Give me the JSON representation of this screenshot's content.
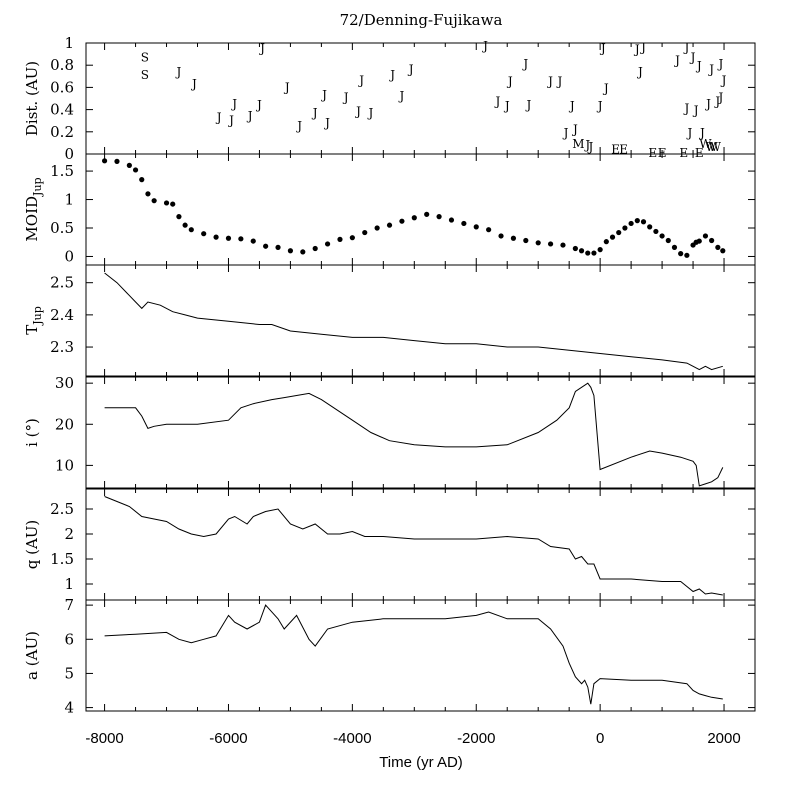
{
  "chart_data": {
    "type": "line",
    "title": "72/Denning-Fujikawa",
    "xlabel": "Time (yr AD)",
    "xlim": [
      -8300,
      2500
    ],
    "xticks": [
      -8000,
      -6000,
      -4000,
      -2000,
      0,
      2000
    ],
    "panels": [
      {
        "id": "dist",
        "type": "scatter",
        "ylabel": "Dist. (AU)",
        "ylim": [
          0,
          1
        ],
        "yticks": [
          0,
          0.2,
          0.4,
          0.6,
          0.8,
          1
        ],
        "encounters": [
          {
            "x": -7350,
            "y": 0.88,
            "label": "S"
          },
          {
            "x": -7350,
            "y": 0.72,
            "label": "S"
          },
          {
            "x": -6800,
            "y": 0.75,
            "label": "J"
          },
          {
            "x": -6550,
            "y": 0.64,
            "label": "J"
          },
          {
            "x": -6150,
            "y": 0.34,
            "label": "J"
          },
          {
            "x": -5950,
            "y": 0.31,
            "label": "J"
          },
          {
            "x": -5900,
            "y": 0.46,
            "label": "J"
          },
          {
            "x": -5650,
            "y": 0.35,
            "label": "J"
          },
          {
            "x": -5500,
            "y": 0.45,
            "label": "J"
          },
          {
            "x": -5450,
            "y": 0.96,
            "label": "J"
          },
          {
            "x": -5050,
            "y": 0.61,
            "label": "J"
          },
          {
            "x": -4850,
            "y": 0.26,
            "label": "J"
          },
          {
            "x": -4600,
            "y": 0.38,
            "label": "J"
          },
          {
            "x": -4450,
            "y": 0.54,
            "label": "J"
          },
          {
            "x": -4400,
            "y": 0.29,
            "label": "J"
          },
          {
            "x": -4100,
            "y": 0.52,
            "label": "J"
          },
          {
            "x": -3900,
            "y": 0.39,
            "label": "J"
          },
          {
            "x": -3850,
            "y": 0.67,
            "label": "J"
          },
          {
            "x": -3700,
            "y": 0.38,
            "label": "J"
          },
          {
            "x": -3350,
            "y": 0.72,
            "label": "J"
          },
          {
            "x": -3200,
            "y": 0.53,
            "label": "J"
          },
          {
            "x": -3050,
            "y": 0.77,
            "label": "J"
          },
          {
            "x": -1850,
            "y": 0.98,
            "label": "J"
          },
          {
            "x": -1650,
            "y": 0.48,
            "label": "J"
          },
          {
            "x": -1500,
            "y": 0.44,
            "label": "J"
          },
          {
            "x": -1450,
            "y": 0.66,
            "label": "J"
          },
          {
            "x": -1200,
            "y": 0.82,
            "label": "J"
          },
          {
            "x": -1150,
            "y": 0.45,
            "label": "J"
          },
          {
            "x": -800,
            "y": 0.66,
            "label": "J"
          },
          {
            "x": -650,
            "y": 0.66,
            "label": "J"
          },
          {
            "x": -550,
            "y": 0.2,
            "label": "J"
          },
          {
            "x": -450,
            "y": 0.44,
            "label": "J"
          },
          {
            "x": -400,
            "y": 0.23,
            "label": "J"
          },
          {
            "x": -350,
            "y": 0.1,
            "label": "M"
          },
          {
            "x": -200,
            "y": 0.09,
            "label": "J"
          },
          {
            "x": -150,
            "y": 0.07,
            "label": "J"
          },
          {
            "x": 0,
            "y": 0.44,
            "label": "J"
          },
          {
            "x": 50,
            "y": 0.96,
            "label": "J"
          },
          {
            "x": 100,
            "y": 0.6,
            "label": "J"
          },
          {
            "x": 250,
            "y": 0.05,
            "label": "E"
          },
          {
            "x": 380,
            "y": 0.05,
            "label": "E"
          },
          {
            "x": 600,
            "y": 0.95,
            "label": "J"
          },
          {
            "x": 650,
            "y": 0.75,
            "label": "J"
          },
          {
            "x": 700,
            "y": 0.97,
            "label": "J"
          },
          {
            "x": 850,
            "y": 0.02,
            "label": "E"
          },
          {
            "x": 1000,
            "y": 0.02,
            "label": "E"
          },
          {
            "x": 1250,
            "y": 0.85,
            "label": "J"
          },
          {
            "x": 1350,
            "y": 0.02,
            "label": "E"
          },
          {
            "x": 1400,
            "y": 0.42,
            "label": "J"
          },
          {
            "x": 1400,
            "y": 0.97,
            "label": "J"
          },
          {
            "x": 1450,
            "y": 0.2,
            "label": "J"
          },
          {
            "x": 1500,
            "y": 0.88,
            "label": "J"
          },
          {
            "x": 1550,
            "y": 0.4,
            "label": "J"
          },
          {
            "x": 1600,
            "y": 0.8,
            "label": "J"
          },
          {
            "x": 1600,
            "y": 0.02,
            "label": "E"
          },
          {
            "x": 1650,
            "y": 0.2,
            "label": "J"
          },
          {
            "x": 1700,
            "y": 0.1,
            "label": "W"
          },
          {
            "x": 1750,
            "y": 0.46,
            "label": "J"
          },
          {
            "x": 1800,
            "y": 0.77,
            "label": "J"
          },
          {
            "x": 1800,
            "y": 0.07,
            "label": "W"
          },
          {
            "x": 1850,
            "y": 0.07,
            "label": "W"
          },
          {
            "x": 1900,
            "y": 0.48,
            "label": "J"
          },
          {
            "x": 1950,
            "y": 0.52,
            "label": "J"
          },
          {
            "x": 1950,
            "y": 0.82,
            "label": "J"
          },
          {
            "x": 2000,
            "y": 0.67,
            "label": "J"
          }
        ]
      },
      {
        "id": "moid",
        "type": "scatter",
        "ylabel": "MOID",
        "ylabel_sub": "Jup",
        "ylim": [
          -0.15,
          1.8
        ],
        "yticks": [
          0,
          0.5,
          1,
          1.5
        ],
        "ytick_labels": [
          "0",
          "0.5",
          "1",
          "1.5"
        ],
        "x": [
          -8000,
          -7800,
          -7600,
          -7500,
          -7400,
          -7300,
          -7200,
          -7000,
          -6900,
          -6800,
          -6700,
          -6600,
          -6400,
          -6200,
          -6000,
          -5800,
          -5600,
          -5400,
          -5200,
          -5000,
          -4800,
          -4600,
          -4400,
          -4200,
          -4000,
          -3800,
          -3600,
          -3400,
          -3200,
          -3000,
          -2800,
          -2600,
          -2400,
          -2200,
          -2000,
          -1800,
          -1600,
          -1400,
          -1200,
          -1000,
          -800,
          -600,
          -400,
          -300,
          -200,
          -100,
          0,
          100,
          200,
          300,
          400,
          500,
          600,
          700,
          800,
          900,
          1000,
          1100,
          1200,
          1300,
          1400,
          1500,
          1550,
          1600,
          1700,
          1800,
          1900,
          1980
        ],
        "values": [
          1.68,
          1.67,
          1.6,
          1.52,
          1.35,
          1.1,
          0.98,
          0.94,
          0.92,
          0.7,
          0.55,
          0.47,
          0.4,
          0.34,
          0.32,
          0.31,
          0.27,
          0.18,
          0.16,
          0.1,
          0.08,
          0.14,
          0.22,
          0.3,
          0.33,
          0.42,
          0.5,
          0.55,
          0.62,
          0.68,
          0.74,
          0.7,
          0.64,
          0.58,
          0.52,
          0.47,
          0.36,
          0.32,
          0.28,
          0.24,
          0.22,
          0.2,
          0.14,
          0.1,
          0.06,
          0.06,
          0.12,
          0.26,
          0.34,
          0.42,
          0.5,
          0.58,
          0.63,
          0.61,
          0.52,
          0.44,
          0.36,
          0.28,
          0.16,
          0.05,
          0.02,
          0.2,
          0.25,
          0.27,
          0.36,
          0.28,
          0.16,
          0.1
        ]
      },
      {
        "id": "tjup",
        "type": "line",
        "ylabel": "T",
        "ylabel_sub": "Jup",
        "ylim": [
          2.21,
          2.555
        ],
        "yticks": [
          2.3,
          2.4,
          2.5
        ],
        "ytick_labels": [
          "2.3",
          "2.4",
          "2.5"
        ],
        "x": [
          -8000,
          -7800,
          -7500,
          -7400,
          -7300,
          -7100,
          -6900,
          -6700,
          -6500,
          -6000,
          -5500,
          -5300,
          -5000,
          -4500,
          -4000,
          -3500,
          -3000,
          -2500,
          -2000,
          -1500,
          -1000,
          -500,
          0,
          500,
          1000,
          1400,
          1500,
          1600,
          1700,
          1800,
          1980
        ],
        "values": [
          2.53,
          2.5,
          2.44,
          2.42,
          2.44,
          2.43,
          2.41,
          2.4,
          2.39,
          2.38,
          2.37,
          2.37,
          2.35,
          2.34,
          2.33,
          2.33,
          2.32,
          2.31,
          2.31,
          2.3,
          2.3,
          2.29,
          2.28,
          2.27,
          2.26,
          2.25,
          2.24,
          2.23,
          2.24,
          2.23,
          2.24
        ]
      },
      {
        "id": "incl",
        "type": "line",
        "ylabel": "i (°)",
        "ylim": [
          4.5,
          31.5
        ],
        "yticks": [
          10,
          20,
          30
        ],
        "ytick_labels": [
          "10",
          "20",
          "30"
        ],
        "x": [
          -8000,
          -7500,
          -7400,
          -7300,
          -7200,
          -7000,
          -6500,
          -6000,
          -5800,
          -5600,
          -5300,
          -5100,
          -4900,
          -4700,
          -4500,
          -4300,
          -4000,
          -3700,
          -3400,
          -3000,
          -2500,
          -2000,
          -1500,
          -1000,
          -700,
          -500,
          -400,
          -300,
          -200,
          -150,
          -100,
          0,
          500,
          800,
          1000,
          1300,
          1500,
          1550,
          1600,
          1700,
          1800,
          1900,
          1980
        ],
        "values": [
          24,
          24,
          22,
          19,
          19.5,
          20,
          20,
          21,
          24,
          25,
          26,
          26.5,
          27,
          27.5,
          26,
          24,
          21,
          18,
          16,
          15,
          14.5,
          14.5,
          15,
          18,
          21,
          24,
          28,
          29,
          30,
          29,
          27,
          9,
          12,
          13.5,
          13,
          12,
          11,
          10,
          5,
          5.5,
          6,
          7,
          9.5
        ]
      },
      {
        "id": "q",
        "type": "line",
        "ylabel": "q (AU)",
        "ylim": [
          0.68,
          2.9
        ],
        "yticks": [
          1,
          1.5,
          2,
          2.5
        ],
        "ytick_labels": [
          "1",
          "1.5",
          "2",
          "2.5"
        ],
        "x": [
          -8000,
          -7800,
          -7600,
          -7400,
          -7200,
          -7000,
          -6800,
          -6600,
          -6400,
          -6200,
          -6000,
          -5900,
          -5700,
          -5600,
          -5400,
          -5200,
          -5000,
          -4800,
          -4600,
          -4400,
          -4200,
          -4000,
          -3800,
          -3500,
          -3000,
          -2500,
          -2000,
          -1500,
          -1000,
          -800,
          -500,
          -400,
          -300,
          -200,
          -100,
          0,
          500,
          1000,
          1300,
          1400,
          1500,
          1600,
          1700,
          1800,
          1980
        ],
        "values": [
          2.75,
          2.65,
          2.55,
          2.35,
          2.3,
          2.25,
          2.1,
          2.0,
          1.95,
          2.0,
          2.3,
          2.35,
          2.2,
          2.35,
          2.45,
          2.5,
          2.2,
          2.1,
          2.2,
          2.0,
          2.0,
          2.05,
          1.95,
          1.95,
          1.9,
          1.9,
          1.9,
          1.95,
          1.9,
          1.75,
          1.7,
          1.5,
          1.55,
          1.4,
          1.4,
          1.1,
          1.1,
          1.05,
          1.05,
          0.95,
          0.85,
          0.9,
          0.8,
          0.82,
          0.78
        ]
      },
      {
        "id": "a",
        "type": "line",
        "ylabel": "a (AU)",
        "ylim": [
          3.9,
          7.15
        ],
        "yticks": [
          4,
          5,
          6,
          7
        ],
        "ytick_labels": [
          "4",
          "5",
          "6",
          "7"
        ],
        "x": [
          -8000,
          -7500,
          -7000,
          -6800,
          -6600,
          -6400,
          -6200,
          -6000,
          -5900,
          -5700,
          -5500,
          -5400,
          -5200,
          -5100,
          -4900,
          -4700,
          -4600,
          -4400,
          -4000,
          -3500,
          -3000,
          -2500,
          -2000,
          -1800,
          -1500,
          -1000,
          -800,
          -600,
          -500,
          -400,
          -300,
          -250,
          -200,
          -150,
          -100,
          0,
          500,
          1000,
          1400,
          1500,
          1600,
          1700,
          1800,
          1980
        ],
        "values": [
          6.1,
          6.15,
          6.2,
          6.0,
          5.9,
          6.0,
          6.1,
          6.7,
          6.5,
          6.3,
          6.5,
          7.0,
          6.6,
          6.3,
          6.7,
          6.0,
          5.8,
          6.3,
          6.5,
          6.6,
          6.6,
          6.6,
          6.7,
          6.8,
          6.6,
          6.6,
          6.3,
          5.8,
          5.3,
          4.9,
          4.7,
          4.8,
          4.6,
          4.1,
          4.7,
          4.85,
          4.8,
          4.8,
          4.7,
          4.5,
          4.4,
          4.35,
          4.3,
          4.25
        ]
      }
    ]
  }
}
